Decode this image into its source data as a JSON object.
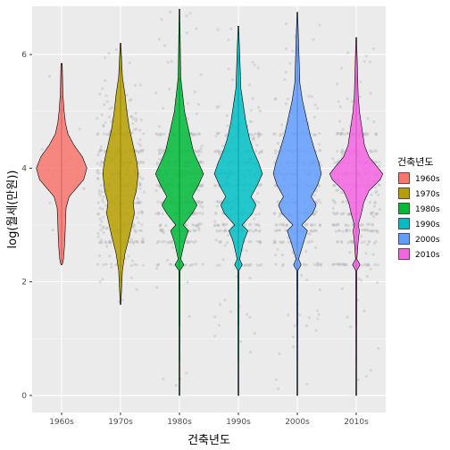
{
  "chart_data": {
    "type": "violin",
    "xlabel": "건축년도",
    "ylabel": "log(월세(만원))",
    "categories": [
      "1960s",
      "1970s",
      "1980s",
      "1990s",
      "2000s",
      "2010s"
    ],
    "y_ticks": [
      0,
      2,
      4,
      6
    ],
    "ylim": [
      -0.3,
      6.85
    ],
    "grid": true,
    "background": "#ebebeb",
    "jitter_color": "#bdbdbd",
    "legend": {
      "title": "건축년도",
      "placement": "right",
      "labels": [
        "1960s",
        "1970s",
        "1980s",
        "1990s",
        "2000s",
        "2010s"
      ]
    },
    "series": [
      {
        "category": "1960s",
        "color": "#F8766D",
        "min": 2.3,
        "max": 5.85,
        "median": 4.0,
        "profile": [
          [
            2.3,
            0.01
          ],
          [
            2.4,
            0.03
          ],
          [
            2.7,
            0.05
          ],
          [
            3.0,
            0.06
          ],
          [
            3.3,
            0.07
          ],
          [
            3.5,
            0.12
          ],
          [
            3.8,
            0.35
          ],
          [
            4.0,
            0.4
          ],
          [
            4.2,
            0.33
          ],
          [
            4.4,
            0.2
          ],
          [
            4.6,
            0.1
          ],
          [
            4.8,
            0.06
          ],
          [
            5.0,
            0.04
          ],
          [
            5.3,
            0.02
          ],
          [
            5.85,
            0.01
          ]
        ]
      },
      {
        "category": "1970s",
        "color": "#B79F00",
        "min": 1.6,
        "max": 6.2,
        "median": 3.95,
        "profile": [
          [
            1.6,
            0.005
          ],
          [
            2.2,
            0.03
          ],
          [
            2.5,
            0.07
          ],
          [
            2.8,
            0.14
          ],
          [
            3.0,
            0.18
          ],
          [
            3.2,
            0.22
          ],
          [
            3.4,
            0.2
          ],
          [
            3.6,
            0.25
          ],
          [
            3.9,
            0.28
          ],
          [
            4.1,
            0.26
          ],
          [
            4.4,
            0.2
          ],
          [
            4.7,
            0.14
          ],
          [
            5.0,
            0.1
          ],
          [
            5.3,
            0.07
          ],
          [
            5.6,
            0.03
          ],
          [
            6.2,
            0.005
          ]
        ]
      },
      {
        "category": "1980s",
        "color": "#00BA38",
        "min": 0,
        "max": 6.8,
        "median": 3.9,
        "profile": [
          [
            0,
            0.005
          ],
          [
            2.2,
            0.01
          ],
          [
            2.3,
            0.07
          ],
          [
            2.4,
            0.02
          ],
          [
            2.7,
            0.08
          ],
          [
            2.9,
            0.14
          ],
          [
            3.0,
            0.06
          ],
          [
            3.2,
            0.2
          ],
          [
            3.35,
            0.28
          ],
          [
            3.5,
            0.2
          ],
          [
            3.7,
            0.3
          ],
          [
            3.9,
            0.38
          ],
          [
            4.1,
            0.3
          ],
          [
            4.3,
            0.22
          ],
          [
            4.5,
            0.18
          ],
          [
            4.8,
            0.12
          ],
          [
            5.0,
            0.08
          ],
          [
            5.3,
            0.05
          ],
          [
            5.6,
            0.02
          ],
          [
            6.8,
            0.005
          ]
        ]
      },
      {
        "category": "1990s",
        "color": "#00BFC4",
        "min": 0,
        "max": 6.5,
        "median": 3.9,
        "profile": [
          [
            0,
            0.005
          ],
          [
            2.2,
            0.01
          ],
          [
            2.3,
            0.06
          ],
          [
            2.4,
            0.02
          ],
          [
            2.7,
            0.08
          ],
          [
            2.9,
            0.15
          ],
          [
            3.0,
            0.06
          ],
          [
            3.2,
            0.22
          ],
          [
            3.35,
            0.28
          ],
          [
            3.5,
            0.2
          ],
          [
            3.7,
            0.3
          ],
          [
            3.9,
            0.38
          ],
          [
            4.1,
            0.32
          ],
          [
            4.3,
            0.24
          ],
          [
            4.5,
            0.18
          ],
          [
            4.8,
            0.12
          ],
          [
            5.1,
            0.08
          ],
          [
            5.4,
            0.04
          ],
          [
            6.5,
            0.005
          ]
        ]
      },
      {
        "category": "2000s",
        "color": "#619CFF",
        "min": 0,
        "max": 6.75,
        "median": 3.95,
        "profile": [
          [
            0,
            0.005
          ],
          [
            2.2,
            0.01
          ],
          [
            2.3,
            0.06
          ],
          [
            2.4,
            0.02
          ],
          [
            2.7,
            0.1
          ],
          [
            2.9,
            0.16
          ],
          [
            3.0,
            0.07
          ],
          [
            3.2,
            0.24
          ],
          [
            3.35,
            0.3
          ],
          [
            3.5,
            0.22
          ],
          [
            3.7,
            0.32
          ],
          [
            3.9,
            0.38
          ],
          [
            4.1,
            0.34
          ],
          [
            4.3,
            0.28
          ],
          [
            4.6,
            0.2
          ],
          [
            4.9,
            0.14
          ],
          [
            5.2,
            0.08
          ],
          [
            5.5,
            0.04
          ],
          [
            6.75,
            0.005
          ]
        ]
      },
      {
        "category": "2010s",
        "color": "#F564E3",
        "min": 0,
        "max": 6.3,
        "median": 3.9,
        "profile": [
          [
            0,
            0.005
          ],
          [
            2.2,
            0.01
          ],
          [
            2.3,
            0.06
          ],
          [
            2.4,
            0.01
          ],
          [
            2.7,
            0.03
          ],
          [
            2.9,
            0.05
          ],
          [
            3.0,
            0.03
          ],
          [
            3.2,
            0.08
          ],
          [
            3.4,
            0.12
          ],
          [
            3.6,
            0.2
          ],
          [
            3.8,
            0.38
          ],
          [
            3.9,
            0.42
          ],
          [
            4.0,
            0.35
          ],
          [
            4.2,
            0.2
          ],
          [
            4.4,
            0.13
          ],
          [
            4.7,
            0.09
          ],
          [
            5.0,
            0.05
          ],
          [
            5.3,
            0.03
          ],
          [
            6.3,
            0.005
          ]
        ]
      }
    ]
  }
}
